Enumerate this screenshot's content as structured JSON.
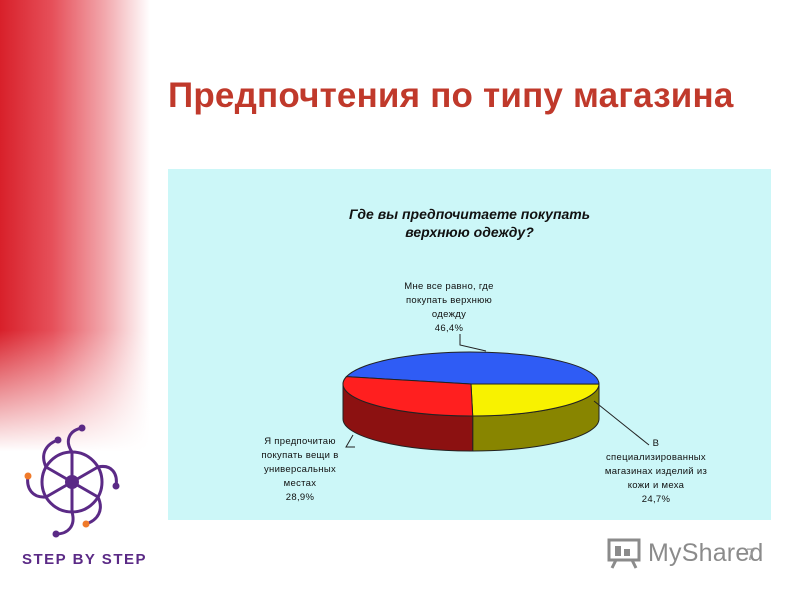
{
  "slide": {
    "title": "Предпочтения по типу магазина",
    "logo_text": "STEP BY STEP",
    "watermark": "MyShared",
    "page_number": "7"
  },
  "chart_data": {
    "type": "pie",
    "title_lines": [
      "Где вы предпочитаете покупать",
      "верхнюю одежду?"
    ],
    "slices": [
      {
        "label_lines": [
          "Мне все равно, где",
          "покупать верхнюю",
          "одежду"
        ],
        "value": 46.4,
        "value_label": "46,4%",
        "color": "#2f5cf5"
      },
      {
        "label_lines": [
          "В",
          "специализированных",
          "магазинах изделий из",
          "кожи и меха"
        ],
        "value": 24.7,
        "value_label": "24,7%",
        "color": "#f8f200"
      },
      {
        "label_lines": [
          "Я предпочитаю",
          "покупать вещи в",
          "универсальных",
          "местах"
        ],
        "value": 28.9,
        "value_label": "28,9%",
        "color": "#ff1f1f"
      }
    ]
  }
}
